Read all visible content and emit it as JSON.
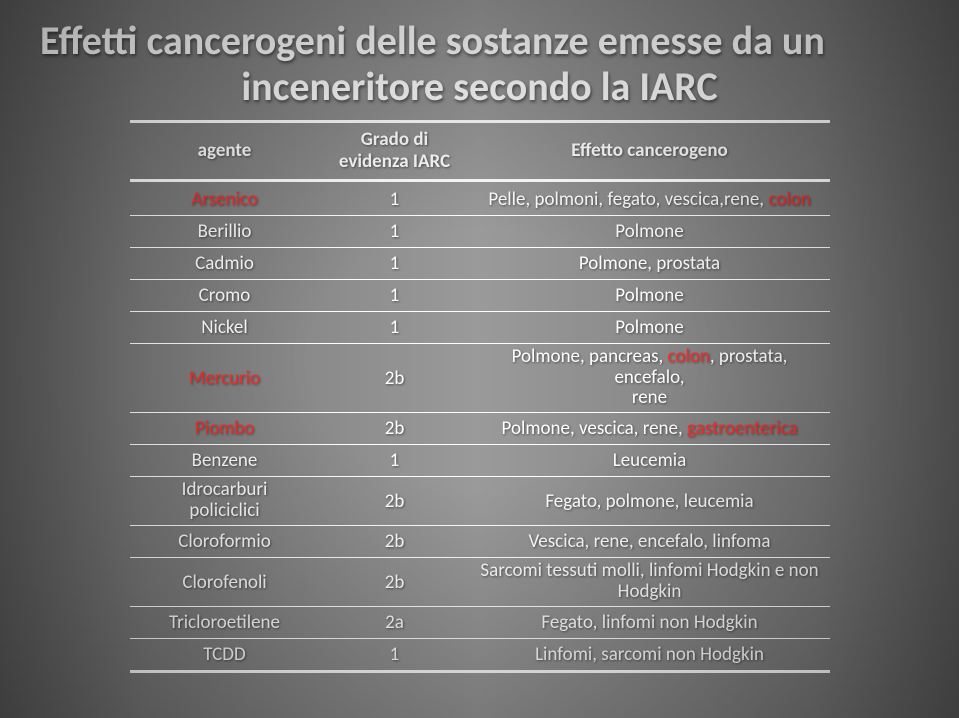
{
  "title_line1": "Effetti cancerogeni delle sostanze emesse da un",
  "title_line2": "inceneritore secondo la IARC",
  "headers": {
    "agente": "agente",
    "grado_l1": "Grado di",
    "grado_l2": "evidenza IARC",
    "effetto": "Effetto cancerogeno"
  },
  "rows": [
    {
      "agente": {
        "text": "Arsenico",
        "red": true
      },
      "grado": "1",
      "effetto": [
        {
          "text": "Pelle, polmoni, fegato, vescica,rene, ",
          "red": false
        },
        {
          "text": "colon",
          "red": true
        }
      ]
    },
    {
      "agente": {
        "text": "Berillio"
      },
      "grado": "1",
      "effetto": [
        {
          "text": "Polmone"
        }
      ]
    },
    {
      "agente": {
        "text": "Cadmio"
      },
      "grado": "1",
      "effetto": [
        {
          "text": "Polmone, prostata"
        }
      ]
    },
    {
      "agente": {
        "text": "Cromo"
      },
      "grado": "1",
      "effetto": [
        {
          "text": "Polmone"
        }
      ]
    },
    {
      "agente": {
        "text": "Nickel"
      },
      "grado": "1",
      "effetto": [
        {
          "text": "Polmone"
        }
      ]
    },
    {
      "agente": {
        "text": "Mercurio",
        "red": true
      },
      "grado": "2b",
      "effetto_lines": [
        [
          {
            "text": "Polmone, pancreas, "
          },
          {
            "text": "colon",
            "red": true
          },
          {
            "text": ", prostata, encefalo,"
          }
        ],
        [
          {
            "text": "rene"
          }
        ]
      ]
    },
    {
      "agente": {
        "text": "Piombo",
        "red": true
      },
      "grado": "2b",
      "effetto": [
        {
          "text": "Polmone, vescica, rene, "
        },
        {
          "text": "gastroenterica",
          "red": true
        }
      ]
    },
    {
      "agente": {
        "text": "Benzene"
      },
      "grado": "1",
      "effetto": [
        {
          "text": "Leucemia"
        }
      ]
    },
    {
      "agente_lines": [
        "Idrocarburi",
        "policiclici"
      ],
      "grado": "2b",
      "effetto": [
        {
          "text": "Fegato, polmone, leucemia"
        }
      ]
    },
    {
      "agente": {
        "text": "Cloroformio"
      },
      "grado": "2b",
      "effetto": [
        {
          "text": "Vescica, rene, encefalo, linfoma"
        }
      ]
    },
    {
      "agente": {
        "text": "Clorofenoli"
      },
      "grado": "2b",
      "effetto_lines": [
        [
          {
            "text": "Sarcomi tessuti molli, linfomi Hodgkin e non"
          }
        ],
        [
          {
            "text": "Hodgkin"
          }
        ]
      ]
    },
    {
      "agente": {
        "text": "Tricloroetilene"
      },
      "grado": "2a",
      "effetto": [
        {
          "text": "Fegato, linfomi non Hodgkin"
        }
      ]
    },
    {
      "agente": {
        "text": "TCDD"
      },
      "grado": "1",
      "effetto": [
        {
          "text": "Linfomi, sarcomi non Hodgkin"
        }
      ]
    }
  ]
}
